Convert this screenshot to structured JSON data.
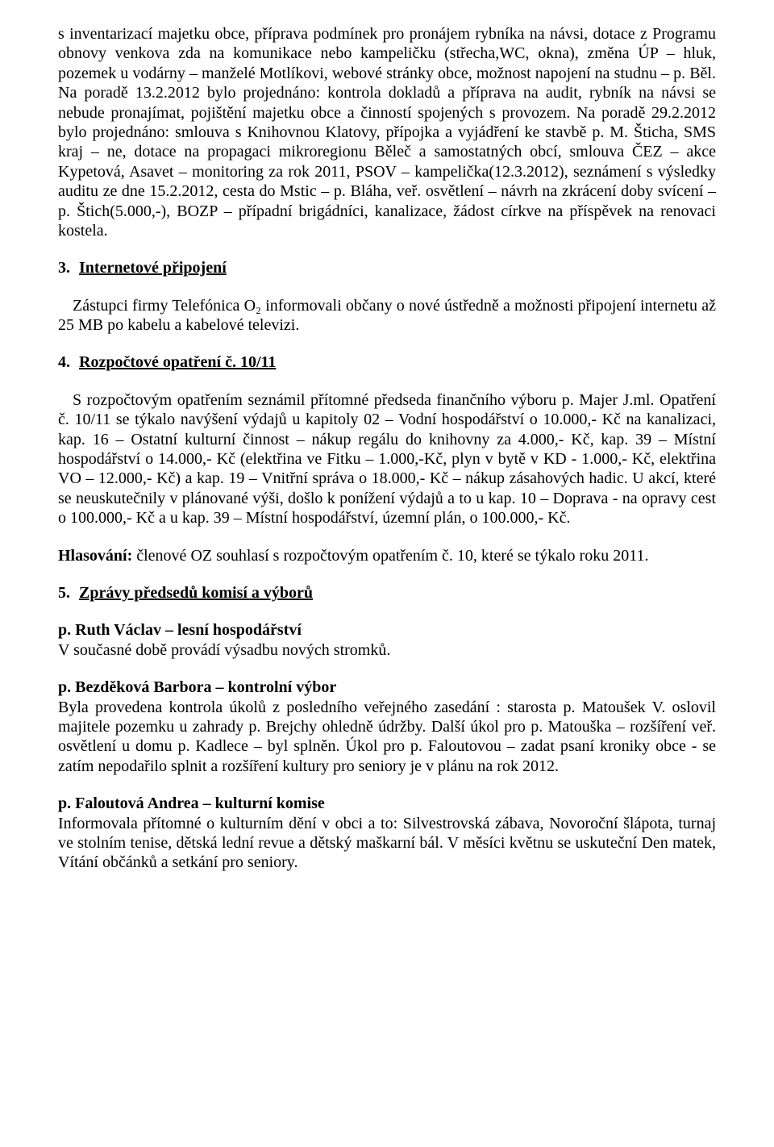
{
  "intro_paragraph": "s inventarizací majetku obce, příprava podmínek pro pronájem rybníka na návsi, dotace z Programu obnovy venkova zda na komunikace nebo kampeličku (střecha,WC, okna), změna ÚP – hluk, pozemek u vodárny – manželé Motlíkovi, webové stránky obce, možnost napojení na studnu – p. Běl. Na poradě 13.2.2012 bylo projednáno: kontrola dokladů a příprava na audit, rybník na návsi se nebude pronajímat, pojištění majetku obce a činností spojených s provozem. Na poradě 29.2.2012 bylo projednáno: smlouva s Knihovnou Klatovy, přípojka a vyjádření ke stavbě p. M. Šticha, SMS kraj – ne, dotace na propagaci mikroregionu Běleč a samostatných obcí, smlouva ČEZ – akce Kypetová, Asavet – monitoring za rok 2011, PSOV – kampelička(12.3.2012), seznámení s výsledky auditu ze dne 15.2.2012, cesta do Mstic – p. Bláha, veř. osvětlení – návrh na zkrácení doby svícení – p. Štich(5.000,-), BOZP – případní brigádníci, kanalizace, žádost církve na příspěvek na renovaci kostela.",
  "s3": {
    "num": "3.",
    "title": "Internetové připojení",
    "body": "Zástupci firmy Telefónica O₂ informovali občany o nové ústředně a možnosti připojení internetu až 25 MB po kabelu a kabelové televizi."
  },
  "s4": {
    "num": "4.",
    "title": "Rozpočtové opatření č. 10/11",
    "body": "S rozpočtovým opatřením seznámil přítomné předseda finančního výboru p. Majer J.ml. Opatření č. 10/11 se týkalo navýšení výdajů u kapitoly 02 – Vodní hospodářství o 10.000,- Kč na kanalizaci, kap. 16 – Ostatní kulturní činnost – nákup regálu do knihovny za 4.000,- Kč, kap. 39 – Místní hospodářství o 14.000,- Kč (elektřina ve Fitku – 1.000,-Kč, plyn v bytě v KD - 1.000,- Kč, elektřina VO – 12.000,- Kč) a kap. 19 – Vnitřní správa o 18.000,- Kč – nákup zásahových hadic. U akcí, které se neuskutečnily v plánované výši, došlo k ponížení výdajů a to u kap. 10 – Doprava - na opravy cest o 100.000,- Kč a u kap. 39 – Místní hospodářství, územní plán, o 100.000,- Kč.",
    "hlas_label": "Hlasování:",
    "hlas_text": " členové OZ souhlasí s rozpočtovým opatřením č. 10, které se týkalo roku 2011."
  },
  "s5": {
    "num": "5.",
    "title": "Zprávy předsedů komisí a výborů",
    "sub1_head": "p. Ruth Václav – lesní hospodářství",
    "sub1_body": "V současné době provádí výsadbu nových stromků.",
    "sub2_head": "p. Bezděková Barbora – kontrolní výbor",
    "sub2_body": "Byla provedena kontrola úkolů z posledního veřejného zasedání : starosta p. Matoušek V. oslovil majitele pozemku u zahrady p. Brejchy ohledně údržby. Další úkol pro p. Matouška – rozšíření veř. osvětlení u domu p. Kadlece – byl splněn. Úkol pro p. Faloutovou – zadat psaní kroniky obce - se zatím nepodařilo splnit a rozšíření kultury pro seniory je v plánu na rok 2012.",
    "sub3_head": "p. Faloutová Andrea – kulturní komise",
    "sub3_body": "Informovala přítomné o kulturním dění v obci a to: Silvestrovská zábava, Novoroční šlápota, turnaj ve stolním tenise, dětská lední revue a dětský maškarní bál. V měsíci květnu se uskuteční Den matek, Vítání občánků a setkání pro seniory."
  }
}
